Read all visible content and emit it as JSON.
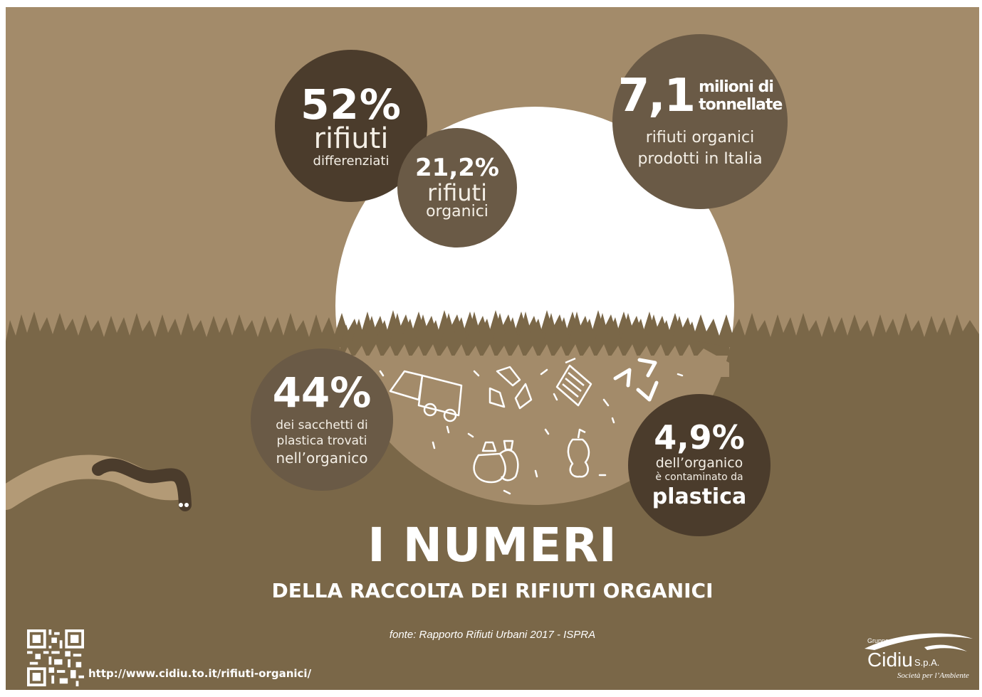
{
  "colors": {
    "sky": "#a38b6a",
    "ground": "#7a6748",
    "bubble_dark": "#4b3c2c",
    "bubble_mid": "#6a5a46",
    "sun": "#ffffff",
    "worm": "#4b3c2c"
  },
  "stats": {
    "differenziati": {
      "value": "52%",
      "line1": "rifiuti",
      "line2": "differenziati"
    },
    "organici": {
      "value": "21,2%",
      "line1": "rifiuti",
      "line2": "organici"
    },
    "tonnellate": {
      "value": "7,1",
      "unit1": "milioni di",
      "unit2": "tonnellate",
      "line1": "rifiuti organici",
      "line2": "prodotti in Italia"
    },
    "sacchetti": {
      "value": "44%",
      "line1": "dei sacchetti di",
      "line2": "plastica trovati",
      "line3": "nell’organico"
    },
    "contaminato": {
      "value": "4,9%",
      "line1": "dell’organico",
      "line2": "è contaminato da",
      "line3": "plastica"
    }
  },
  "title": "I NUMERI",
  "subtitle": "DELLA RACCOLTA DEI RIFIUTI ORGANICI",
  "source": "fonte: Rapporto Rifiuti Urbani 2017 - ISPRA",
  "footer": {
    "url": "http://www.cidiu.to.it/rifiuti-organici/"
  },
  "logo": {
    "group": "Gruppo",
    "brand": "Cidiu",
    "suffix": "S.p.A.",
    "tagline": "Società per l’Ambiente"
  },
  "icons": [
    "garbage-truck-icon",
    "recycle-icon",
    "trash-bin-icon",
    "recycle-arrows-icon",
    "garbage-bags-icon",
    "apple-core-icon"
  ]
}
